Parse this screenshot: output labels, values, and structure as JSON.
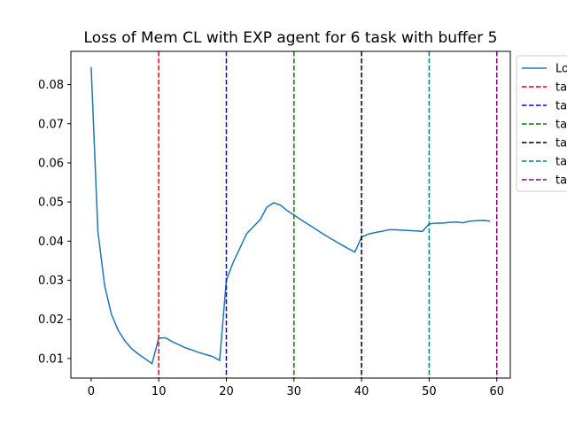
{
  "chart_data": {
    "type": "line",
    "title": "Loss of Mem CL with EXP agent for 6 task with buffer 5",
    "xlabel": "",
    "ylabel": "",
    "xlim": [
      -3,
      62
    ],
    "ylim": [
      0.005,
      0.0885
    ],
    "xticks": [
      "0",
      "10",
      "20",
      "30",
      "40",
      "50",
      "60"
    ],
    "yticks": [
      "0.01",
      "0.02",
      "0.03",
      "0.04",
      "0.05",
      "0.06",
      "0.07",
      "0.08"
    ],
    "grid": false,
    "legend_position": "upper-right-outside",
    "series": [
      {
        "name": "Lo",
        "color": "#1f77b4",
        "x": [
          0,
          1,
          2,
          3,
          4,
          5,
          6,
          7,
          8,
          9,
          10,
          11,
          12,
          13,
          14,
          15,
          16,
          17,
          18,
          19,
          20,
          21,
          22,
          23,
          24,
          25,
          26,
          27,
          28,
          29,
          30,
          31,
          32,
          33,
          34,
          35,
          36,
          37,
          38,
          39,
          40,
          41,
          42,
          43,
          44,
          45,
          46,
          47,
          48,
          49,
          50,
          51,
          52,
          53,
          54,
          55,
          56,
          57,
          58,
          59
        ],
        "y": [
          0.0845,
          0.0425,
          0.0285,
          0.0213,
          0.0172,
          0.0145,
          0.0125,
          0.0111,
          0.0099,
          0.0087,
          0.0152,
          0.0153,
          0.0143,
          0.0135,
          0.0127,
          0.0121,
          0.0115,
          0.011,
          0.0105,
          0.0095,
          0.03,
          0.0345,
          0.0382,
          0.0419,
          0.0437,
          0.0455,
          0.0487,
          0.0498,
          0.0492,
          0.0478,
          0.0467,
          0.0455,
          0.0444,
          0.0433,
          0.0422,
          0.0411,
          0.0401,
          0.0391,
          0.0381,
          0.0372,
          0.041,
          0.0418,
          0.0422,
          0.0425,
          0.0429,
          0.0429,
          0.0428,
          0.0427,
          0.0426,
          0.0425,
          0.0444,
          0.0446,
          0.0446,
          0.0448,
          0.0449,
          0.0447,
          0.0451,
          0.0452,
          0.0453,
          0.0451
        ]
      }
    ],
    "vlines": [
      {
        "name": "ta",
        "x": 10,
        "color": "#ff0000"
      },
      {
        "name": "ta",
        "x": 20,
        "color": "#0000ff"
      },
      {
        "name": "ta",
        "x": 30,
        "color": "#008000"
      },
      {
        "name": "ta",
        "x": 40,
        "color": "#000000"
      },
      {
        "name": "ta",
        "x": 50,
        "color": "#008080"
      },
      {
        "name": "ta",
        "x": 60,
        "color": "#800080"
      }
    ]
  }
}
